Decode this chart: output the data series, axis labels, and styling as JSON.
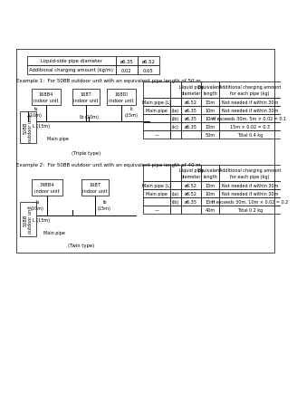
{
  "top_table": {
    "col1": "Liquid-side pipe diameter",
    "col2": "ø6.35",
    "col3": "ø6.52",
    "row2_label": "Additional charging amount (kg/m)",
    "row2_val1": "0.02",
    "row2_val2": "0.05"
  },
  "example1": {
    "title": "Example 1:  For 50BB outdoor unit with an equivalent pipe length of 50 m",
    "diagram": {
      "outdoor": "50BB\noutdoor unit",
      "indoor1": "168B4\nindoor unit",
      "indoor2": "168T\nindoor unit",
      "indoor3": "168DI\nindoor unit",
      "L": "L (15m)",
      "la": "la\n(10m)",
      "lb": "lb (10m)",
      "lc": "lc\n(15m)",
      "main_pipe": "Main pipe",
      "type": "(Triple type)"
    },
    "table": {
      "col_headers": [
        "Liquid pipe\ndiameter",
        "Equivalent\nlength",
        "Additional charging amount\nfor each pipe (kg)"
      ],
      "rows": [
        [
          "Main pipe (L)",
          "",
          "ø6.52",
          "15m",
          "Not needed if within 30m"
        ],
        [
          "Main pipe",
          "(la)",
          "ø6.35",
          "10m",
          "Not needed if within 30m"
        ],
        [
          "",
          "(lb)",
          "ø6.35",
          "10m",
          "If exceeds 30m, 5m × 0.02 = 0.1"
        ],
        [
          "",
          "(lc)",
          "ø6.35",
          "15m",
          "15m × 0.02 = 0.3"
        ],
        [
          "—",
          "",
          "",
          "50m",
          "Total 0.4 kg"
        ]
      ]
    }
  },
  "example2": {
    "title": "Example 2:  For 50BB outdoor unit with an equivalent pipe length of 40 m",
    "diagram": {
      "outdoor": "50BB\noutdoor unit",
      "indoor1": "34BB4\nindoor unit",
      "indoor2": "16BT\nindoor unit",
      "L": "L (15m)",
      "la": "la\n(10m)",
      "lb": "lb\n(15m)",
      "main_pipe": "Main pipe",
      "type": "(Twin type)"
    },
    "table": {
      "col_headers": [
        "Liquid pipe\ndiameter",
        "Equivalent\nlength",
        "Additional charging amount\nfor each pipe (kg)"
      ],
      "rows": [
        [
          "Main pipe (L)",
          "",
          "ø6.52",
          "15m",
          "Not needed if within 30m"
        ],
        [
          "Main pipe",
          "(la)",
          "ø6.52",
          "10m",
          "Not needed if within 30m"
        ],
        [
          "",
          "(lb)",
          "ø6.35",
          "15m",
          "If exceeds 30m, 10m × 0.02 = 0.2"
        ],
        [
          "—",
          "",
          "",
          "40m",
          "Total 0.2 kg"
        ]
      ]
    }
  },
  "bg_color": "#ffffff",
  "text_color": "#000000"
}
